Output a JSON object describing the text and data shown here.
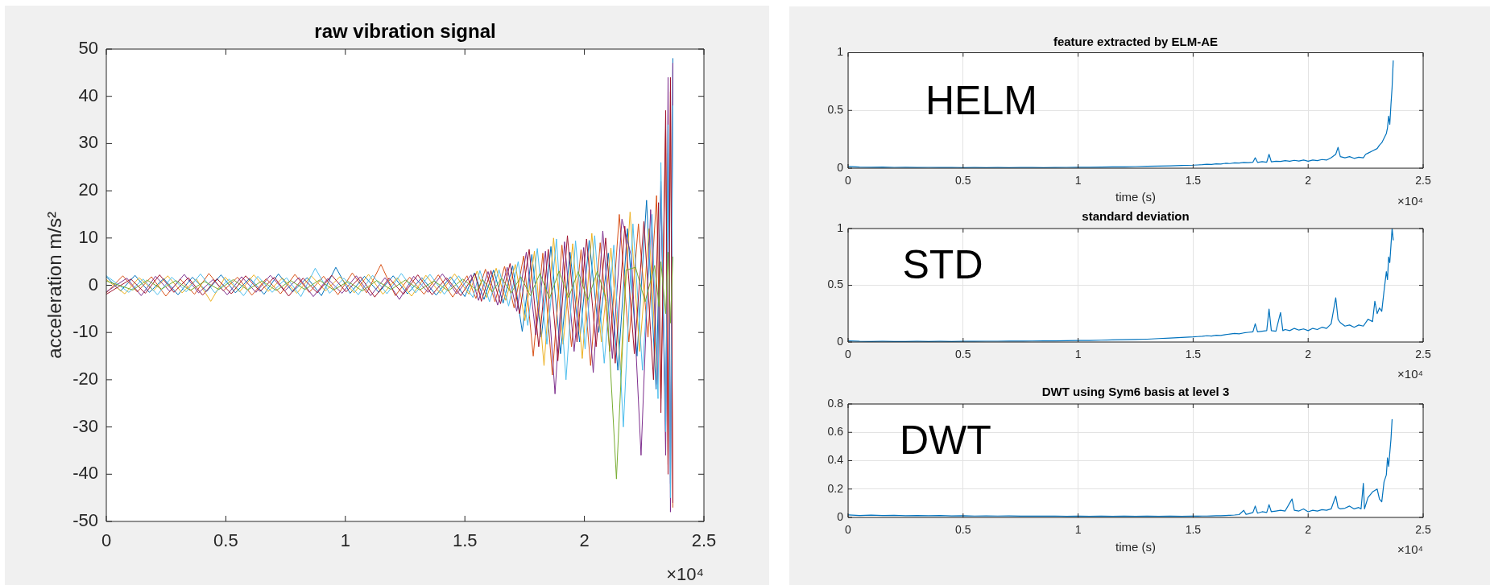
{
  "chart_data": [
    {
      "type": "line",
      "title": "raw vibration signal",
      "ylabel": "acceleration m/s²",
      "annotations": [
        "×10⁴"
      ],
      "xlim": [
        0,
        2.5
      ],
      "xticks": [
        0,
        0.5,
        1,
        1.5,
        2,
        2.5
      ],
      "ylim": [
        -50,
        50
      ],
      "yticks": [
        -50,
        -40,
        -30,
        -20,
        -10,
        0,
        10,
        20,
        30,
        40,
        50
      ],
      "series": [
        {
          "color": "#0072bd",
          "x": [
            0,
            0.06,
            0.12,
            0.18,
            0.24,
            0.3,
            0.36,
            0.42,
            0.48,
            0.54,
            0.6,
            0.66,
            0.72,
            0.78,
            0.84,
            0.9,
            0.96,
            1.02,
            1.08,
            1.14,
            1.2,
            1.26,
            1.32,
            1.38,
            1.44,
            1.5,
            1.54,
            1.58,
            1.62,
            1.66,
            1.7,
            1.74,
            1.78,
            1.82,
            1.86,
            1.9,
            1.94,
            1.98,
            2.02,
            2.06,
            2.1,
            2.14,
            2.18,
            2.22,
            2.26,
            2.3,
            2.32,
            2.34,
            2.35,
            2.36,
            2.37
          ],
          "values": [
            1.8,
            -1.2,
            2.1,
            -1.5,
            1.4,
            -2.0,
            1.7,
            -1.3,
            2.2,
            -1.6,
            1.5,
            -1.9,
            2.4,
            -1.4,
            1.6,
            -2.2,
            3.8,
            -1.7,
            1.9,
            -1.5,
            2.0,
            -1.8,
            1.6,
            -2.1,
            1.8,
            -2.4,
            2.6,
            -3.0,
            3.2,
            -3.8,
            4.1,
            -9.8,
            6.5,
            -11.0,
            8.2,
            -14.5,
            7.0,
            -12.0,
            9.5,
            -10.0,
            6.8,
            -18.0,
            12.0,
            -15.0,
            18.0,
            -22.0,
            20.0,
            -30.0,
            28.0,
            -42.0,
            48.0
          ]
        },
        {
          "color": "#d95319",
          "x": [
            0,
            0.069,
            0.129,
            0.189,
            0.249,
            0.309,
            0.369,
            0.429,
            0.489,
            0.549,
            0.609,
            0.669,
            0.729,
            0.789,
            0.849,
            0.909,
            0.969,
            1.029,
            1.089,
            1.149,
            1.209,
            1.269,
            1.329,
            1.389,
            1.449,
            1.509,
            1.546,
            1.586,
            1.626,
            1.666,
            1.706,
            1.746,
            1.786,
            1.826,
            1.866,
            1.906,
            1.946,
            1.986,
            2.026,
            2.066,
            2.106,
            2.146,
            2.186,
            2.226,
            2.266,
            2.302,
            2.32,
            2.34,
            2.35,
            2.36,
            2.37
          ],
          "values": [
            -1.6,
            2.0,
            -1.4,
            1.8,
            -2.3,
            1.3,
            -1.9,
            2.5,
            -1.2,
            1.7,
            -2.1,
            1.4,
            -1.8,
            2.3,
            -1.5,
            1.9,
            -2.0,
            2.6,
            -1.6,
            4.4,
            -2.2,
            1.7,
            -1.9,
            2.2,
            -2.5,
            2.0,
            -2.8,
            3.4,
            -3.5,
            4.0,
            -4.8,
            6.2,
            -15.0,
            6.8,
            -19.0,
            8.5,
            -13.0,
            7.5,
            -17.0,
            9.0,
            -14.0,
            15.0,
            -12.0,
            13.0,
            -11.0,
            19.0,
            -24.0,
            33.0,
            -38.0,
            41.0,
            -47.0
          ]
        },
        {
          "color": "#edb120",
          "x": [
            0,
            0.077,
            0.137,
            0.197,
            0.257,
            0.317,
            0.377,
            0.437,
            0.497,
            0.557,
            0.617,
            0.677,
            0.737,
            0.797,
            0.857,
            0.917,
            0.977,
            1.037,
            1.097,
            1.157,
            1.217,
            1.277,
            1.337,
            1.397,
            1.457,
            1.517,
            1.551,
            1.591,
            1.631,
            1.671,
            1.711,
            1.751,
            1.791,
            1.831,
            1.871,
            1.911,
            1.951,
            1.991,
            2.031,
            2.071,
            2.111,
            2.151,
            2.191,
            2.231,
            2.271,
            2.304
          ],
          "values": [
            1.2,
            -1.8,
            1.6,
            -1.1,
            2.0,
            -1.6,
            1.3,
            -3.4,
            1.7,
            -1.4,
            2.2,
            -1.3,
            1.5,
            -1.7,
            2.0,
            -1.2,
            1.8,
            -1.6,
            2.3,
            -1.9,
            1.6,
            -2.3,
            2.1,
            -1.7,
            2.4,
            -1.9,
            3.0,
            -2.6,
            3.6,
            -3.2,
            4.4,
            -7.5,
            7.2,
            -17.0,
            10.0,
            -12.5,
            8.8,
            -15.5,
            11.0,
            -12.0,
            7.9,
            -18.0,
            15.5,
            -14.0,
            12.0,
            -20.0
          ]
        },
        {
          "color": "#7e2f8e",
          "x": [
            0,
            0.086,
            0.146,
            0.206,
            0.266,
            0.326,
            0.386,
            0.446,
            0.506,
            0.566,
            0.626,
            0.686,
            0.746,
            0.806,
            0.866,
            0.926,
            0.986,
            1.046,
            1.106,
            1.166,
            1.226,
            1.286,
            1.346,
            1.406,
            1.466,
            1.526,
            1.557,
            1.597,
            1.637,
            1.677,
            1.717,
            1.757,
            1.797,
            1.837,
            1.877,
            1.917,
            1.957,
            1.997,
            2.037,
            2.077,
            2.117,
            2.157,
            2.197,
            2.237,
            2.277,
            2.306,
            2.32,
            2.34,
            2.35,
            2.36,
            2.37
          ],
          "values": [
            -1.4,
            1.5,
            -2.2,
            1.9,
            -1.3,
            2.3,
            -1.6,
            1.2,
            -2.0,
            1.8,
            -1.5,
            2.1,
            -1.2,
            1.6,
            -2.4,
            1.4,
            -1.7,
            2.0,
            -2.2,
            1.6,
            -3.0,
            1.9,
            -1.5,
            2.4,
            -1.8,
            2.2,
            -3.2,
            2.9,
            -4.2,
            3.8,
            -5.5,
            7.0,
            -10.5,
            7.2,
            -23.0,
            9.2,
            -14.0,
            8.0,
            -18.5,
            11.5,
            -15.5,
            14.0,
            6.0,
            -36.0,
            16.0,
            -21.0,
            22.0,
            -36.0,
            44.0,
            -48.0,
            47.0
          ]
        },
        {
          "color": "#4dbeee",
          "x": [
            0,
            0.094,
            0.154,
            0.214,
            0.274,
            0.334,
            0.394,
            0.454,
            0.514,
            0.574,
            0.634,
            0.694,
            0.754,
            0.814,
            0.874,
            0.934,
            0.994,
            1.054,
            1.114,
            1.174,
            1.234,
            1.294,
            1.354,
            1.414,
            1.474,
            1.534,
            1.563,
            1.603,
            1.643,
            1.683,
            1.723,
            1.763,
            1.803,
            1.843,
            1.883,
            1.923,
            1.963,
            2.003,
            2.043,
            2.083,
            2.123,
            2.163,
            2.203,
            2.243,
            2.283,
            2.308,
            2.32,
            2.34,
            2.35,
            2.36,
            2.37
          ],
          "values": [
            2.0,
            -1.5,
            1.3,
            -2.0,
            1.7,
            -1.4,
            2.4,
            -1.6,
            1.3,
            -2.2,
            1.9,
            -1.5,
            1.6,
            -2.4,
            3.6,
            -1.7,
            1.5,
            -2.0,
            2.1,
            -1.8,
            2.5,
            -1.6,
            2.3,
            -1.9,
            2.0,
            -2.6,
            3.1,
            -3.5,
            3.3,
            -4.4,
            5.0,
            -8.5,
            7.8,
            -12.5,
            9.8,
            -20.0,
            9.4,
            -13.5,
            10.5,
            -16.5,
            8.5,
            -30.0,
            13.0,
            -18.0,
            15.0,
            -24.0,
            26.0,
            -31.0,
            34.0,
            -45.0,
            38.0
          ]
        },
        {
          "color": "#a2142f",
          "x": [
            0,
            0.103,
            0.163,
            0.223,
            0.283,
            0.343,
            0.403,
            0.463,
            0.523,
            0.583,
            0.643,
            0.703,
            0.763,
            0.823,
            0.883,
            0.943,
            1.003,
            1.063,
            1.123,
            1.183,
            1.243,
            1.303,
            1.363,
            1.423,
            1.483,
            1.543,
            1.569,
            1.609,
            1.649,
            1.689,
            1.729,
            1.769,
            1.809,
            1.849,
            1.889,
            1.929,
            1.969,
            2.009,
            2.049,
            2.089,
            2.129,
            2.169,
            2.209,
            2.249,
            2.289,
            2.31,
            2.32,
            2.34,
            2.35,
            2.36,
            2.37
          ],
          "values": [
            -1.9,
            1.3,
            -1.7,
            2.2,
            -1.5,
            1.6,
            -2.1,
            1.4,
            -1.8,
            2.0,
            -1.3,
            1.7,
            -2.3,
            1.5,
            -1.6,
            2.1,
            -1.4,
            1.8,
            -2.5,
            1.5,
            -1.9,
            2.2,
            -2.0,
            1.6,
            -2.2,
            2.5,
            -3.4,
            3.1,
            -3.9,
            4.6,
            -6.0,
            7.6,
            -13.0,
            7.6,
            -16.0,
            10.5,
            -12.0,
            9.8,
            -13.0,
            10.0,
            -16.5,
            12.5,
            -14.5,
            13.5,
            -20.0,
            17.5,
            -27.0,
            37.0,
            -40.0,
            44.0,
            -46.0
          ]
        },
        {
          "color": "#77ac30",
          "x": [
            0,
            0.111,
            0.171,
            0.231,
            0.291,
            0.351,
            0.411,
            0.471,
            0.531,
            0.591,
            0.651,
            0.711,
            0.771,
            0.831,
            0.891,
            0.951,
            1.011,
            1.071,
            1.131,
            1.191,
            1.251,
            1.311,
            1.371,
            1.431,
            1.491,
            1.551,
            1.574,
            1.614,
            1.654,
            1.694,
            1.734,
            1.774,
            1.814,
            1.854,
            1.894,
            1.934,
            1.974,
            2.014,
            2.054,
            2.094,
            2.134,
            2.174,
            2.214,
            2.254,
            2.294,
            2.312,
            2.32,
            2.34,
            2.35,
            2.36,
            2.37
          ],
          "values": [
            0.9,
            -1.0,
            1.1,
            -0.8,
            1.0,
            -1.1,
            0.8,
            -0.9,
            1.2,
            -1.0,
            0.9,
            -1.1,
            1.0,
            -0.9,
            1.1,
            -1.0,
            0.8,
            -1.2,
            1.0,
            -0.9,
            1.1,
            -1.0,
            0.9,
            -1.2,
            1.3,
            -1.1,
            1.2,
            -1.4,
            1.5,
            -1.6,
            1.8,
            -2.2,
            2.5,
            -2.8,
            3.0,
            -2.6,
            2.9,
            -3.2,
            3.0,
            -3.4,
            -41.0,
            3.2,
            3.8,
            -3.5,
            4.2,
            -4.5,
            5.0,
            -6.0,
            7.0,
            -8.0,
            6.0
          ]
        }
      ]
    },
    {
      "type": "line",
      "title": "feature extracted by ELM-AE",
      "xlabel": "time (s)",
      "annotations": [
        "×10⁴",
        "HELM"
      ],
      "grid": true,
      "color": "#0072bd",
      "xlim": [
        0,
        2.5
      ],
      "xticks": [
        0,
        0.5,
        1,
        1.5,
        2,
        2.5
      ],
      "ylim": [
        0,
        1
      ],
      "yticks": [
        0,
        0.5,
        1
      ],
      "x": [
        0,
        0.05,
        0.1,
        0.15,
        0.2,
        0.25,
        0.3,
        0.35,
        0.4,
        0.45,
        0.5,
        0.55,
        0.6,
        0.65,
        0.7,
        0.75,
        0.8,
        0.85,
        0.9,
        0.95,
        1,
        1.05,
        1.1,
        1.15,
        1.2,
        1.25,
        1.3,
        1.35,
        1.4,
        1.45,
        1.5,
        1.52,
        1.54,
        1.56,
        1.58,
        1.6,
        1.62,
        1.64,
        1.66,
        1.68,
        1.7,
        1.72,
        1.74,
        1.76,
        1.77,
        1.78,
        1.8,
        1.82,
        1.83,
        1.84,
        1.86,
        1.88,
        1.9,
        1.92,
        1.94,
        1.96,
        1.98,
        2,
        2.02,
        2.04,
        2.06,
        2.08,
        2.1,
        2.12,
        2.13,
        2.14,
        2.16,
        2.18,
        2.2,
        2.22,
        2.24,
        2.25,
        2.26,
        2.28,
        2.3,
        2.31,
        2.32,
        2.33,
        2.34,
        2.345,
        2.35,
        2.355,
        2.36,
        2.365,
        2.37
      ],
      "values": [
        0.015,
        0.01,
        0.008,
        0.009,
        0.007,
        0.008,
        0.006,
        0.007,
        0.006,
        0.007,
        0.005,
        0.006,
        0.005,
        0.006,
        0.005,
        0.006,
        0.006,
        0.005,
        0.006,
        0.007,
        0.008,
        0.008,
        0.01,
        0.011,
        0.012,
        0.014,
        0.016,
        0.018,
        0.02,
        0.024,
        0.026,
        0.028,
        0.03,
        0.034,
        0.032,
        0.038,
        0.036,
        0.042,
        0.04,
        0.046,
        0.044,
        0.05,
        0.048,
        0.052,
        0.09,
        0.05,
        0.056,
        0.052,
        0.12,
        0.055,
        0.06,
        0.058,
        0.065,
        0.06,
        0.068,
        0.062,
        0.07,
        0.06,
        0.07,
        0.065,
        0.075,
        0.07,
        0.09,
        0.12,
        0.18,
        0.1,
        0.09,
        0.1,
        0.085,
        0.095,
        0.09,
        0.12,
        0.13,
        0.15,
        0.17,
        0.2,
        0.22,
        0.26,
        0.3,
        0.35,
        0.45,
        0.38,
        0.55,
        0.7,
        0.93
      ]
    },
    {
      "type": "line",
      "title": "standard deviation",
      "annotations": [
        "×10⁴",
        "STD"
      ],
      "grid": true,
      "color": "#0072bd",
      "xlim": [
        0,
        2.5
      ],
      "xticks": [
        0,
        0.5,
        1,
        1.5,
        2,
        2.5
      ],
      "ylim": [
        0,
        1
      ],
      "yticks": [
        0,
        0.5,
        1
      ],
      "x": [
        0,
        0.05,
        0.1,
        0.15,
        0.2,
        0.25,
        0.3,
        0.35,
        0.4,
        0.45,
        0.5,
        0.55,
        0.6,
        0.65,
        0.7,
        0.75,
        0.8,
        0.85,
        0.9,
        0.95,
        1,
        1.05,
        1.1,
        1.15,
        1.2,
        1.25,
        1.3,
        1.35,
        1.4,
        1.45,
        1.5,
        1.52,
        1.54,
        1.56,
        1.58,
        1.6,
        1.62,
        1.64,
        1.66,
        1.68,
        1.7,
        1.72,
        1.74,
        1.76,
        1.77,
        1.78,
        1.8,
        1.82,
        1.83,
        1.84,
        1.86,
        1.88,
        1.89,
        1.9,
        1.92,
        1.94,
        1.96,
        1.98,
        2,
        2.02,
        2.04,
        2.06,
        2.08,
        2.1,
        2.12,
        2.13,
        2.14,
        2.16,
        2.18,
        2.2,
        2.22,
        2.24,
        2.26,
        2.28,
        2.29,
        2.3,
        2.31,
        2.32,
        2.33,
        2.34,
        2.345,
        2.35,
        2.355,
        2.36,
        2.365,
        2.37
      ],
      "values": [
        0.01,
        0.006,
        0.005,
        0.006,
        0.005,
        0.005,
        0.006,
        0.005,
        0.006,
        0.005,
        0.006,
        0.006,
        0.007,
        0.007,
        0.008,
        0.008,
        0.009,
        0.01,
        0.01,
        0.011,
        0.013,
        0.014,
        0.016,
        0.018,
        0.02,
        0.022,
        0.025,
        0.03,
        0.034,
        0.04,
        0.045,
        0.048,
        0.05,
        0.055,
        0.052,
        0.06,
        0.058,
        0.065,
        0.07,
        0.075,
        0.072,
        0.08,
        0.085,
        0.09,
        0.16,
        0.09,
        0.095,
        0.1,
        0.29,
        0.1,
        0.095,
        0.26,
        0.1,
        0.11,
        0.1,
        0.12,
        0.105,
        0.115,
        0.1,
        0.12,
        0.11,
        0.13,
        0.12,
        0.16,
        0.39,
        0.2,
        0.17,
        0.14,
        0.15,
        0.13,
        0.15,
        0.14,
        0.2,
        0.18,
        0.36,
        0.25,
        0.3,
        0.27,
        0.45,
        0.62,
        0.55,
        0.75,
        0.7,
        0.85,
        1.0,
        0.9
      ]
    },
    {
      "type": "line",
      "title": "DWT using Sym6 basis at level 3",
      "xlabel": "time (s)",
      "annotations": [
        "×10⁴",
        "DWT"
      ],
      "grid": true,
      "color": "#0072bd",
      "xlim": [
        0,
        2.5
      ],
      "xticks": [
        0,
        0.5,
        1,
        1.5,
        2,
        2.5
      ],
      "ylim": [
        0,
        0.8
      ],
      "yticks": [
        0,
        0.2,
        0.4,
        0.6,
        0.8
      ],
      "x": [
        0,
        0.05,
        0.1,
        0.15,
        0.2,
        0.25,
        0.3,
        0.35,
        0.4,
        0.45,
        0.5,
        0.55,
        0.6,
        0.65,
        0.7,
        0.75,
        0.8,
        0.85,
        0.9,
        0.95,
        1,
        1.05,
        1.1,
        1.15,
        1.2,
        1.25,
        1.3,
        1.35,
        1.4,
        1.45,
        1.5,
        1.52,
        1.54,
        1.56,
        1.58,
        1.6,
        1.62,
        1.64,
        1.66,
        1.68,
        1.7,
        1.72,
        1.73,
        1.74,
        1.76,
        1.77,
        1.78,
        1.8,
        1.82,
        1.83,
        1.84,
        1.86,
        1.88,
        1.9,
        1.93,
        1.94,
        1.96,
        1.98,
        2,
        2.02,
        2.04,
        2.06,
        2.08,
        2.1,
        2.12,
        2.13,
        2.14,
        2.16,
        2.18,
        2.2,
        2.22,
        2.23,
        2.24,
        2.245,
        2.26,
        2.28,
        2.3,
        2.31,
        2.32,
        2.33,
        2.34,
        2.345,
        2.35,
        2.36,
        2.365
      ],
      "values": [
        0.018,
        0.014,
        0.016,
        0.013,
        0.015,
        0.012,
        0.014,
        0.012,
        0.013,
        0.011,
        0.012,
        0.01,
        0.011,
        0.01,
        0.011,
        0.009,
        0.01,
        0.009,
        0.01,
        0.008,
        0.009,
        0.008,
        0.009,
        0.008,
        0.009,
        0.008,
        0.009,
        0.008,
        0.009,
        0.008,
        0.009,
        0.009,
        0.01,
        0.01,
        0.011,
        0.012,
        0.012,
        0.014,
        0.015,
        0.017,
        0.02,
        0.05,
        0.022,
        0.025,
        0.035,
        0.08,
        0.03,
        0.04,
        0.035,
        0.09,
        0.04,
        0.045,
        0.05,
        0.045,
        0.13,
        0.05,
        0.045,
        0.06,
        0.04,
        0.05,
        0.045,
        0.055,
        0.05,
        0.06,
        0.15,
        0.07,
        0.06,
        0.065,
        0.08,
        0.06,
        0.07,
        0.06,
        0.24,
        0.06,
        0.14,
        0.18,
        0.2,
        0.13,
        0.11,
        0.25,
        0.3,
        0.42,
        0.36,
        0.55,
        0.69
      ]
    }
  ]
}
